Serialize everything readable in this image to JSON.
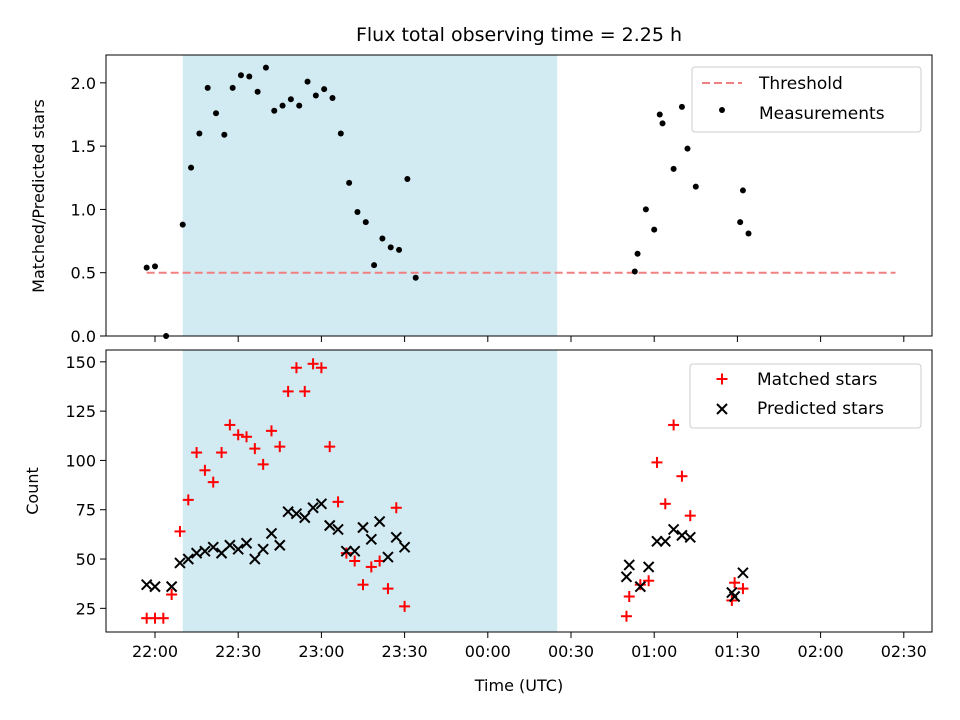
{
  "title": "Flux total observing time = 2.25 h",
  "colors": {
    "threshold": "#f08080",
    "shade": "#add8e6",
    "matched": "#ff0000",
    "predicted": "#000000",
    "measurements": "#000000"
  },
  "chart_data": [
    {
      "type": "scatter",
      "ylabel": "Matched/Predicted stars",
      "ylim": [
        0,
        2.22
      ],
      "yticks": [
        0.0,
        0.5,
        1.0,
        1.5,
        2.0
      ],
      "ytick_labels": [
        "0.0",
        "0.5",
        "1.0",
        "1.5",
        "2.0"
      ],
      "shaded_span": [
        "22:10",
        "00:25"
      ],
      "legend_position": "upper right",
      "legend": {
        "threshold": "Threshold",
        "measurements": "Measurements"
      },
      "threshold": {
        "value": 0.5,
        "x_start": "21:57",
        "x_end": "02:27"
      },
      "measurements": [
        [
          "21:57",
          0.54
        ],
        [
          "22:00",
          0.55
        ],
        [
          "22:04",
          0.0
        ],
        [
          "22:10",
          0.88
        ],
        [
          "22:13",
          1.33
        ],
        [
          "22:16",
          1.6
        ],
        [
          "22:19",
          1.96
        ],
        [
          "22:22",
          1.76
        ],
        [
          "22:25",
          1.59
        ],
        [
          "22:28",
          1.96
        ],
        [
          "22:31",
          2.06
        ],
        [
          "22:34",
          2.05
        ],
        [
          "22:37",
          1.93
        ],
        [
          "22:40",
          2.12
        ],
        [
          "22:43",
          1.78
        ],
        [
          "22:46",
          1.82
        ],
        [
          "22:49",
          1.87
        ],
        [
          "22:52",
          1.82
        ],
        [
          "22:55",
          2.01
        ],
        [
          "22:58",
          1.9
        ],
        [
          "23:01",
          1.95
        ],
        [
          "23:04",
          1.88
        ],
        [
          "23:07",
          1.6
        ],
        [
          "23:10",
          1.21
        ],
        [
          "23:13",
          0.98
        ],
        [
          "23:16",
          0.9
        ],
        [
          "23:19",
          0.56
        ],
        [
          "23:22",
          0.77
        ],
        [
          "23:25",
          0.7
        ],
        [
          "23:28",
          0.68
        ],
        [
          "23:31",
          1.24
        ],
        [
          "23:34",
          0.46
        ],
        [
          "00:53",
          0.51
        ],
        [
          "00:54",
          0.65
        ],
        [
          "00:57",
          1.0
        ],
        [
          "01:00",
          0.84
        ],
        [
          "01:02",
          1.75
        ],
        [
          "01:03",
          1.68
        ],
        [
          "01:07",
          1.32
        ],
        [
          "01:10",
          1.81
        ],
        [
          "01:12",
          1.48
        ],
        [
          "01:15",
          1.18
        ],
        [
          "01:31",
          0.9
        ],
        [
          "01:32",
          1.15
        ],
        [
          "01:34",
          0.81
        ]
      ]
    },
    {
      "type": "scatter",
      "xlabel": "Time (UTC)",
      "ylabel": "Count",
      "ylim": [
        13,
        156
      ],
      "yticks": [
        25,
        50,
        75,
        100,
        125,
        150
      ],
      "ytick_labels": [
        "25",
        "50",
        "75",
        "100",
        "125",
        "150"
      ],
      "xtick_labels": [
        "22:00",
        "22:30",
        "23:00",
        "23:30",
        "00:00",
        "00:30",
        "01:00",
        "01:30",
        "02:00",
        "02:30"
      ],
      "shaded_span": [
        "22:10",
        "00:25"
      ],
      "legend_position": "upper right",
      "series": [
        {
          "name": "Matched stars",
          "marker": "+",
          "points": [
            [
              "21:57",
              20
            ],
            [
              "22:00",
              20
            ],
            [
              "22:03",
              20
            ],
            [
              "22:06",
              32
            ],
            [
              "22:09",
              64
            ],
            [
              "22:12",
              80
            ],
            [
              "22:15",
              104
            ],
            [
              "22:18",
              95
            ],
            [
              "22:21",
              89
            ],
            [
              "22:24",
              104
            ],
            [
              "22:27",
              118
            ],
            [
              "22:30",
              113
            ],
            [
              "22:33",
              112
            ],
            [
              "22:36",
              106
            ],
            [
              "22:39",
              98
            ],
            [
              "22:42",
              115
            ],
            [
              "22:45",
              107
            ],
            [
              "22:48",
              135
            ],
            [
              "22:51",
              147
            ],
            [
              "22:54",
              135
            ],
            [
              "22:57",
              149
            ],
            [
              "23:00",
              147
            ],
            [
              "23:03",
              107
            ],
            [
              "23:06",
              79
            ],
            [
              "23:09",
              53
            ],
            [
              "23:12",
              49
            ],
            [
              "23:15",
              37
            ],
            [
              "23:18",
              46
            ],
            [
              "23:21",
              49
            ],
            [
              "23:24",
              35
            ],
            [
              "23:27",
              76
            ],
            [
              "23:30",
              26
            ],
            [
              "00:50",
              21
            ],
            [
              "00:51",
              31
            ],
            [
              "00:55",
              37
            ],
            [
              "00:58",
              39
            ],
            [
              "01:01",
              99
            ],
            [
              "01:04",
              78
            ],
            [
              "01:07",
              118
            ],
            [
              "01:10",
              92
            ],
            [
              "01:13",
              72
            ],
            [
              "01:28",
              29
            ],
            [
              "01:29",
              38
            ],
            [
              "01:32",
              35
            ]
          ]
        },
        {
          "name": "Predicted stars",
          "marker": "x",
          "points": [
            [
              "21:57",
              37
            ],
            [
              "22:00",
              36
            ],
            [
              "22:06",
              36
            ],
            [
              "22:09",
              48
            ],
            [
              "22:12",
              50
            ],
            [
              "22:15",
              53
            ],
            [
              "22:18",
              54
            ],
            [
              "22:21",
              56
            ],
            [
              "22:24",
              53
            ],
            [
              "22:27",
              57
            ],
            [
              "22:30",
              55
            ],
            [
              "22:33",
              58
            ],
            [
              "22:36",
              50
            ],
            [
              "22:39",
              55
            ],
            [
              "22:42",
              63
            ],
            [
              "22:45",
              57
            ],
            [
              "22:48",
              74
            ],
            [
              "22:51",
              73
            ],
            [
              "22:54",
              71
            ],
            [
              "22:57",
              76
            ],
            [
              "23:00",
              78
            ],
            [
              "23:03",
              67
            ],
            [
              "23:06",
              65
            ],
            [
              "23:09",
              54
            ],
            [
              "23:12",
              54
            ],
            [
              "23:15",
              66
            ],
            [
              "23:18",
              60
            ],
            [
              "23:21",
              69
            ],
            [
              "23:24",
              51
            ],
            [
              "23:27",
              61
            ],
            [
              "23:30",
              56
            ],
            [
              "00:50",
              41
            ],
            [
              "00:51",
              47
            ],
            [
              "00:55",
              36
            ],
            [
              "00:58",
              46
            ],
            [
              "01:01",
              59
            ],
            [
              "01:04",
              59
            ],
            [
              "01:07",
              65
            ],
            [
              "01:10",
              62
            ],
            [
              "01:13",
              61
            ],
            [
              "01:28",
              33
            ],
            [
              "01:29",
              31
            ],
            [
              "01:32",
              43
            ]
          ]
        }
      ]
    }
  ]
}
